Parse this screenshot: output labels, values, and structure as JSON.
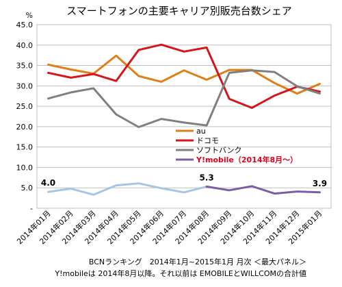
{
  "chart_data": {
    "type": "line",
    "title": "スマートフォンの主要キャリア別販売台数シェア",
    "y_unit": "%",
    "ylim": [
      0,
      45
    ],
    "yticks": [
      "-",
      "5.0",
      "10.0",
      "15.0",
      "20.0",
      "25.0",
      "30.0",
      "35.0",
      "40.0",
      "45.0"
    ],
    "grid": true,
    "categories": [
      "2014年01月",
      "2014年02月",
      "2014年03月",
      "2014年04月",
      "2014年05月",
      "2014年06月",
      "2014年07月",
      "2014年08月",
      "2014年09月",
      "2014年10月",
      "2014年11月",
      "2014年12月",
      "2015年01月"
    ],
    "series": [
      {
        "name": "au",
        "color": "#e07e16",
        "values": [
          35.2,
          34.0,
          33.0,
          37.4,
          32.4,
          31.0,
          33.8,
          31.5,
          33.9,
          33.9,
          30.7,
          28.1,
          30.5
        ]
      },
      {
        "name": "ドコモ",
        "color": "#d9131a",
        "values": [
          33.2,
          32.0,
          32.9,
          31.2,
          38.8,
          40.1,
          38.4,
          39.4,
          26.8,
          24.6,
          27.6,
          29.8,
          28.6
        ]
      },
      {
        "name": "ソフトバンク",
        "color": "#7f7f7f",
        "values": [
          26.9,
          28.4,
          29.4,
          23.0,
          19.9,
          21.9,
          21.0,
          20.3,
          33.2,
          33.8,
          33.4,
          29.9,
          28.1
        ]
      },
      {
        "name": "EMOBILE",
        "color": "#a7c4e4",
        "values": [
          4.0,
          4.8,
          3.3,
          5.6,
          6.1,
          4.9,
          3.9,
          5.3,
          null,
          null,
          null,
          null,
          null
        ]
      },
      {
        "name": "Y!mobile（2014年8月～）",
        "color": "#7b5ca6",
        "values": [
          null,
          null,
          null,
          null,
          null,
          null,
          null,
          5.3,
          4.4,
          5.4,
          3.6,
          4.1,
          3.9
        ]
      }
    ],
    "legend": [
      {
        "label": "au",
        "color": "#e07e16"
      },
      {
        "label": "ドコモ",
        "color": "#d9131a"
      },
      {
        "label": "ソフトバンク",
        "color": "#7f7f7f"
      },
      {
        "label": "Y!mobile（2014年8月～）",
        "color": "#7b5ca6"
      }
    ],
    "legend_position": "center-right",
    "data_labels": [
      {
        "series": "EMOBILE",
        "index": 0,
        "text": "4.0"
      },
      {
        "series": "EMOBILE",
        "index": 7,
        "text": "5.3"
      },
      {
        "series": "Y!mobile（2014年8月～）",
        "index": 12,
        "text": "3.9"
      }
    ],
    "notes": [
      "BCNランキング　2014年1月~2015年1月 月次 ＜最大パネル＞",
      "Y!mobileは 2014年8月以降。それ以前は EMOBILEとWILLCOMの合計値"
    ]
  }
}
